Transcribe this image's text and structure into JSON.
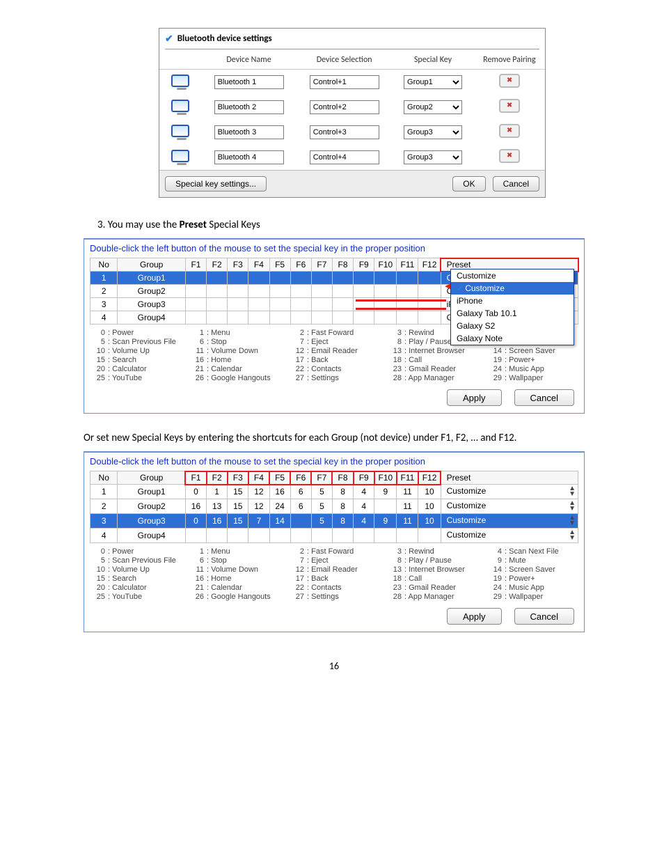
{
  "bluetooth_panel": {
    "title": "Bluetooth device settings",
    "columns": {
      "name": "Device Name",
      "selection": "Device Selection",
      "special": "Special Key",
      "remove": "Remove Pairing"
    },
    "rows": [
      {
        "name": "Bluetooth 1",
        "selection": "Control+1",
        "special": "Group1"
      },
      {
        "name": "Bluetooth 2",
        "selection": "Control+2",
        "special": "Group2"
      },
      {
        "name": "Bluetooth 3",
        "selection": "Control+3",
        "special": "Group3"
      },
      {
        "name": "Bluetooth 4",
        "selection": "Control+4",
        "special": "Group3"
      }
    ],
    "footer": {
      "special": "Special key settings...",
      "ok": "OK",
      "cancel": "Cancel"
    }
  },
  "step3_text_a": "3.   You may use the ",
  "step3_text_b": "Preset",
  "step3_text_c": " Special Keys",
  "sk_instruction": "Double-click the left button of the mouse to set the special key in the proper position",
  "fkey_headers": {
    "no": "No",
    "group": "Group",
    "F1": "F1",
    "F2": "F2",
    "F3": "F3",
    "F4": "F4",
    "F5": "F5",
    "F6": "F6",
    "F7": "F7",
    "F8": "F8",
    "F9": "F9",
    "F10": "F10",
    "F11": "F11",
    "F12": "F12",
    "preset": "Preset"
  },
  "groups_a": [
    {
      "no": "1",
      "group": "Group1",
      "F": [
        "",
        "",
        "",
        "",
        "",
        "",
        "",
        "",
        "",
        "",
        "",
        ""
      ],
      "preset": "Customize",
      "selected": true
    },
    {
      "no": "2",
      "group": "Group2",
      "F": [
        "",
        "",
        "",
        "",
        "",
        "",
        "",
        "",
        "",
        "",
        "",
        ""
      ],
      "preset": "Customize"
    },
    {
      "no": "3",
      "group": "Group3",
      "F": [
        "",
        "",
        "",
        "",
        "",
        "",
        "",
        "",
        "",
        "",
        "",
        ""
      ],
      "preset": "iPhone"
    },
    {
      "no": "4",
      "group": "Group4",
      "F": [
        "",
        "",
        "",
        "",
        "",
        "",
        "",
        "",
        "",
        "",
        "",
        ""
      ],
      "preset": "Galaxy Tab 10.1"
    }
  ],
  "dropdown_options": [
    {
      "label": "Customize",
      "selected": false
    },
    {
      "label": "Customize",
      "selected": true
    },
    {
      "label": "iPhone",
      "selected": false
    },
    {
      "label": "Galaxy Tab 10.1",
      "selected": false
    },
    {
      "label": "Galaxy S2",
      "selected": false
    },
    {
      "label": "Galaxy Note",
      "selected": false
    }
  ],
  "groups_b": [
    {
      "no": "1",
      "group": "Group1",
      "F": [
        "0",
        "1",
        "15",
        "12",
        "16",
        "6",
        "5",
        "8",
        "4",
        "9",
        "11",
        "10"
      ],
      "preset": "Customize"
    },
    {
      "no": "2",
      "group": "Group2",
      "F": [
        "16",
        "13",
        "15",
        "12",
        "24",
        "6",
        "5",
        "8",
        "4",
        "",
        "11",
        "10"
      ],
      "preset": "Customize"
    },
    {
      "no": "3",
      "group": "Group3",
      "F": [
        "0",
        "16",
        "15",
        "7",
        "14",
        "",
        "5",
        "8",
        "4",
        "9",
        "11",
        "10"
      ],
      "preset": "Customize",
      "selected": true
    },
    {
      "no": "4",
      "group": "Group4",
      "F": [
        "",
        "",
        "",
        "",
        "",
        "",
        "",
        "",
        "",
        "",
        "",
        ""
      ],
      "preset": "Customize"
    }
  ],
  "legend": [
    [
      "0",
      ": Power",
      "1",
      ": Menu",
      "2",
      ": Fast Foward",
      "3",
      ": Rewind",
      "4",
      ": Scan Next File"
    ],
    [
      "5",
      ": Scan Previous File",
      "6",
      ": Stop",
      "7",
      ": Eject",
      "8",
      ": Play / Pause",
      "9",
      ": Mute"
    ],
    [
      "10",
      ": Volume Up",
      "11",
      ": Volume Down",
      "12",
      ": Email Reader",
      "13",
      ": Internet Browser",
      "14",
      ": Screen Saver"
    ],
    [
      "15",
      ": Search",
      "16",
      ": Home",
      "17",
      ": Back",
      "18",
      ": Call",
      "19",
      ": Power+"
    ],
    [
      "20",
      ": Calculator",
      "21",
      ": Calendar",
      "22",
      ": Contacts",
      "23",
      ": Gmail Reader",
      "24",
      ": Music App"
    ],
    [
      "25",
      ": YouTube",
      "26",
      ": Google Hangouts",
      "27",
      ": Settings",
      "28",
      ": App Manager",
      "29",
      ": Wallpaper"
    ]
  ],
  "sk_buttons": {
    "apply": "Apply",
    "cancel": "Cancel"
  },
  "para2": "Or set new Special Keys by entering the shortcuts for each Group (not device) under F1, F2, … and F12.",
  "page_number": "16"
}
